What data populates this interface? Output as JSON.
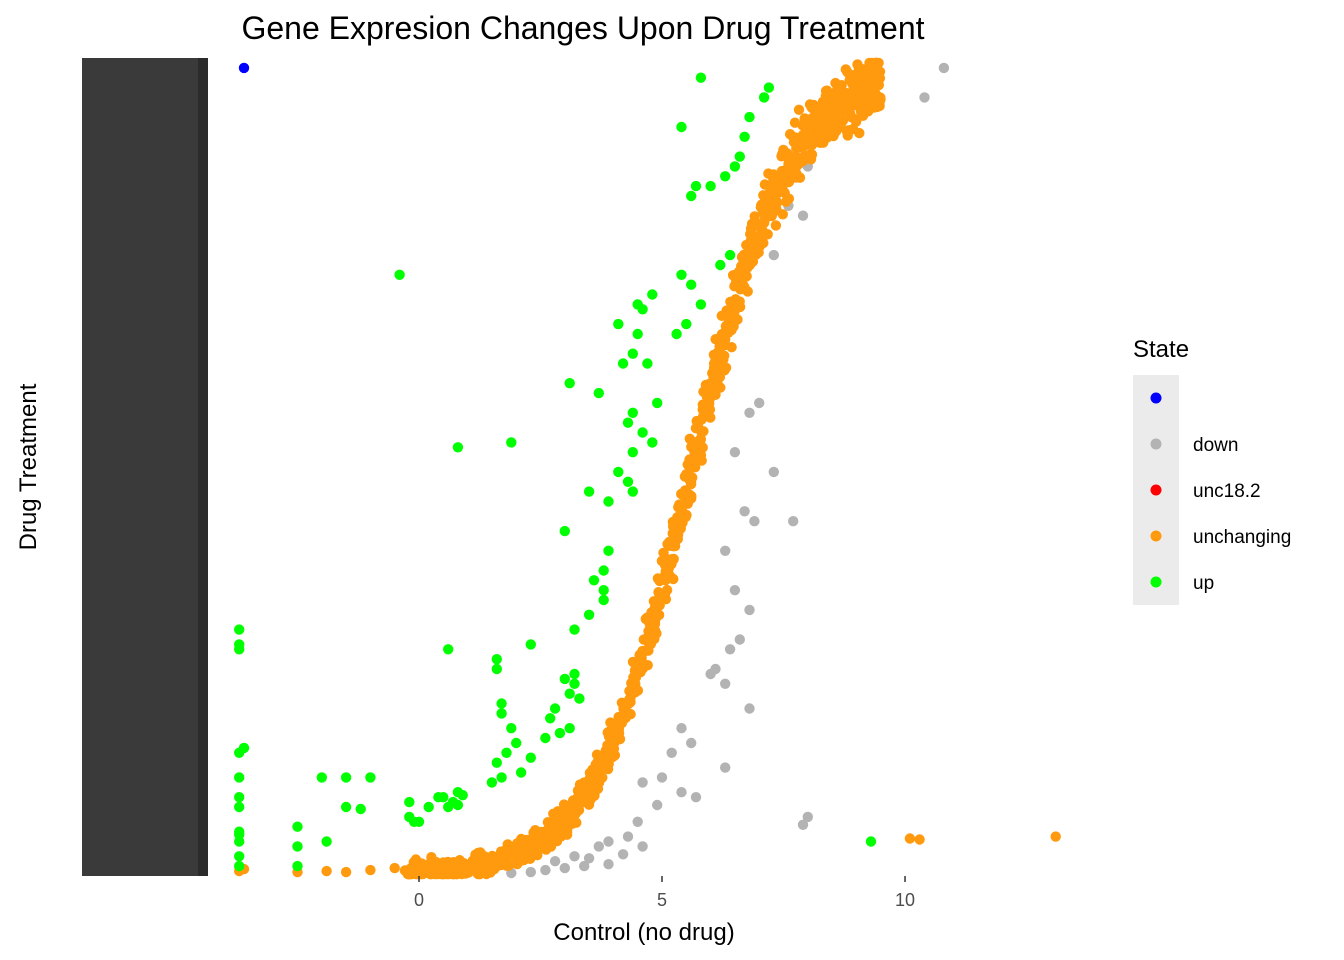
{
  "chart_data": {
    "type": "scatter",
    "title": "Gene Expresion Changes Upon Drug Treatment",
    "xlabel": "Control (no drug)",
    "ylabel": "Drug Treatment",
    "x_ticks": [
      0,
      5,
      10
    ],
    "xlim": [
      -4.3,
      13.6
    ],
    "ylim": [
      0,
      8.3
    ],
    "grid": false,
    "y_tick_labels_note": "y-axis tick labels overprinted and illegible (values treated as text by source)",
    "legend": {
      "title": "State",
      "position": "right",
      "entries": [
        {
          "label": "",
          "color": "#0000ff"
        },
        {
          "label": "down",
          "color": "#b3b3b3"
        },
        {
          "label": "unc18.2",
          "color": "#ff0000"
        },
        {
          "label": "unchanging",
          "color": "#ff9a0e"
        },
        {
          "label": "up",
          "color": "#00ff00"
        }
      ]
    },
    "series": [
      {
        "name": "",
        "color": "#0000ff",
        "points": [
          [
            -3.6,
            8.2
          ]
        ]
      },
      {
        "name": "down",
        "color": "#b3b3b3",
        "points": [
          [
            10.8,
            8.2
          ],
          [
            10.4,
            7.9
          ],
          [
            8.0,
            7.2
          ],
          [
            7.6,
            6.8
          ],
          [
            7.9,
            6.7
          ],
          [
            7.3,
            6.3
          ],
          [
            6.8,
            4.7
          ],
          [
            7.0,
            4.8
          ],
          [
            6.5,
            4.3
          ],
          [
            7.3,
            4.1
          ],
          [
            6.7,
            3.7
          ],
          [
            6.9,
            3.6
          ],
          [
            7.7,
            3.6
          ],
          [
            6.3,
            3.3
          ],
          [
            6.5,
            2.9
          ],
          [
            6.8,
            2.7
          ],
          [
            6.6,
            2.4
          ],
          [
            6.4,
            2.3
          ],
          [
            6.1,
            2.1
          ],
          [
            6.0,
            2.05
          ],
          [
            6.3,
            1.95
          ],
          [
            6.8,
            1.7
          ],
          [
            5.4,
            1.5
          ],
          [
            5.6,
            1.35
          ],
          [
            5.2,
            1.25
          ],
          [
            6.3,
            1.1
          ],
          [
            5.0,
            1.0
          ],
          [
            4.6,
            0.95
          ],
          [
            5.4,
            0.85
          ],
          [
            5.7,
            0.8
          ],
          [
            4.9,
            0.72
          ],
          [
            4.5,
            0.55
          ],
          [
            8.0,
            0.6
          ],
          [
            7.9,
            0.52
          ],
          [
            4.3,
            0.4
          ],
          [
            4.6,
            0.3
          ],
          [
            4.2,
            0.22
          ],
          [
            3.7,
            0.3
          ],
          [
            3.5,
            0.18
          ],
          [
            3.9,
            0.12
          ],
          [
            3.2,
            0.2
          ],
          [
            2.8,
            0.15
          ],
          [
            3.4,
            0.1
          ],
          [
            3.0,
            0.08
          ],
          [
            2.6,
            0.06
          ],
          [
            2.3,
            0.04
          ],
          [
            1.9,
            0.03
          ],
          [
            3.9,
            0.35
          ]
        ]
      },
      {
        "name": "up",
        "color": "#00ff00",
        "points": [
          [
            5.8,
            8.1
          ],
          [
            7.2,
            8.0
          ],
          [
            7.1,
            7.9
          ],
          [
            6.8,
            7.7
          ],
          [
            5.4,
            7.6
          ],
          [
            6.7,
            7.5
          ],
          [
            6.6,
            7.3
          ],
          [
            6.5,
            7.2
          ],
          [
            6.3,
            7.1
          ],
          [
            6.0,
            7.0
          ],
          [
            5.7,
            7.0
          ],
          [
            5.6,
            6.9
          ],
          [
            6.4,
            6.3
          ],
          [
            6.2,
            6.2
          ],
          [
            5.4,
            6.1
          ],
          [
            5.6,
            6.0
          ],
          [
            5.8,
            5.8
          ],
          [
            5.5,
            5.6
          ],
          [
            5.3,
            5.5
          ],
          [
            -0.4,
            6.1
          ],
          [
            4.8,
            5.9
          ],
          [
            4.5,
            5.8
          ],
          [
            4.6,
            5.75
          ],
          [
            4.1,
            5.6
          ],
          [
            4.5,
            5.5
          ],
          [
            4.4,
            5.3
          ],
          [
            4.2,
            5.2
          ],
          [
            4.7,
            5.2
          ],
          [
            3.1,
            5.0
          ],
          [
            3.7,
            4.9
          ],
          [
            4.9,
            4.8
          ],
          [
            4.4,
            4.7
          ],
          [
            4.3,
            4.6
          ],
          [
            4.6,
            4.5
          ],
          [
            4.8,
            4.4
          ],
          [
            1.9,
            4.4
          ],
          [
            0.8,
            4.35
          ],
          [
            4.4,
            4.3
          ],
          [
            4.1,
            4.1
          ],
          [
            4.3,
            4.0
          ],
          [
            3.5,
            3.9
          ],
          [
            4.4,
            3.9
          ],
          [
            3.9,
            3.8
          ],
          [
            3.0,
            3.5
          ],
          [
            3.9,
            3.3
          ],
          [
            3.8,
            3.1
          ],
          [
            3.6,
            3.0
          ],
          [
            3.8,
            2.9
          ],
          [
            3.8,
            2.8
          ],
          [
            3.5,
            2.65
          ],
          [
            3.2,
            2.5
          ],
          [
            2.3,
            2.35
          ],
          [
            0.6,
            2.3
          ],
          [
            1.6,
            2.2
          ],
          [
            1.6,
            2.1
          ],
          [
            3.2,
            2.05
          ],
          [
            3.0,
            2.0
          ],
          [
            3.2,
            1.95
          ],
          [
            3.1,
            1.85
          ],
          [
            3.3,
            1.8
          ],
          [
            2.8,
            1.7
          ],
          [
            2.7,
            1.6
          ],
          [
            1.7,
            1.75
          ],
          [
            3.1,
            1.5
          ],
          [
            2.9,
            1.45
          ],
          [
            2.6,
            1.4
          ],
          [
            1.7,
            1.65
          ],
          [
            1.9,
            1.5
          ],
          [
            2.0,
            1.35
          ],
          [
            1.8,
            1.25
          ],
          [
            2.3,
            1.2
          ],
          [
            1.6,
            1.15
          ],
          [
            2.1,
            1.05
          ],
          [
            1.7,
            1.0
          ],
          [
            1.5,
            0.95
          ],
          [
            -1.5,
            1.0
          ],
          [
            -2.0,
            1.0
          ],
          [
            -1.0,
            1.0
          ],
          [
            0.8,
            0.85
          ],
          [
            0.5,
            0.8
          ],
          [
            0.9,
            0.82
          ],
          [
            0.4,
            0.8
          ],
          [
            0.7,
            0.75
          ],
          [
            0.8,
            0.72
          ],
          [
            -0.2,
            0.75
          ],
          [
            0.2,
            0.7
          ],
          [
            0.6,
            0.7
          ],
          [
            -1.5,
            0.7
          ],
          [
            -1.2,
            0.68
          ],
          [
            -0.2,
            0.6
          ],
          [
            -0.1,
            0.55
          ],
          [
            0.0,
            0.55
          ],
          [
            9.3,
            0.35
          ],
          [
            -3.7,
            2.5
          ],
          [
            -3.7,
            2.35
          ],
          [
            -3.7,
            2.3
          ],
          [
            -3.6,
            1.3
          ],
          [
            -3.7,
            1.25
          ],
          [
            -3.7,
            1.0
          ],
          [
            -3.7,
            0.8
          ],
          [
            -3.7,
            0.7
          ],
          [
            -3.7,
            0.45
          ],
          [
            -3.7,
            0.42
          ],
          [
            -3.7,
            0.35
          ],
          [
            -3.7,
            0.2
          ],
          [
            -3.7,
            0.1
          ],
          [
            -2.5,
            0.5
          ],
          [
            -2.5,
            0.3
          ],
          [
            -1.9,
            0.35
          ],
          [
            -2.5,
            0.1
          ]
        ]
      },
      {
        "name": "unchanging",
        "color": "#ff9a0e",
        "curve_points": 1150,
        "points": [
          [
            10.3,
            0.37
          ],
          [
            10.1,
            0.38
          ],
          [
            13.1,
            0.4
          ],
          [
            -3.6,
            0.07
          ],
          [
            -3.7,
            0.05
          ],
          [
            -2.5,
            0.04
          ],
          [
            -1.9,
            0.05
          ],
          [
            -1.5,
            0.04
          ],
          [
            -1.0,
            0.06
          ],
          [
            -0.5,
            0.08
          ]
        ]
      }
    ]
  }
}
